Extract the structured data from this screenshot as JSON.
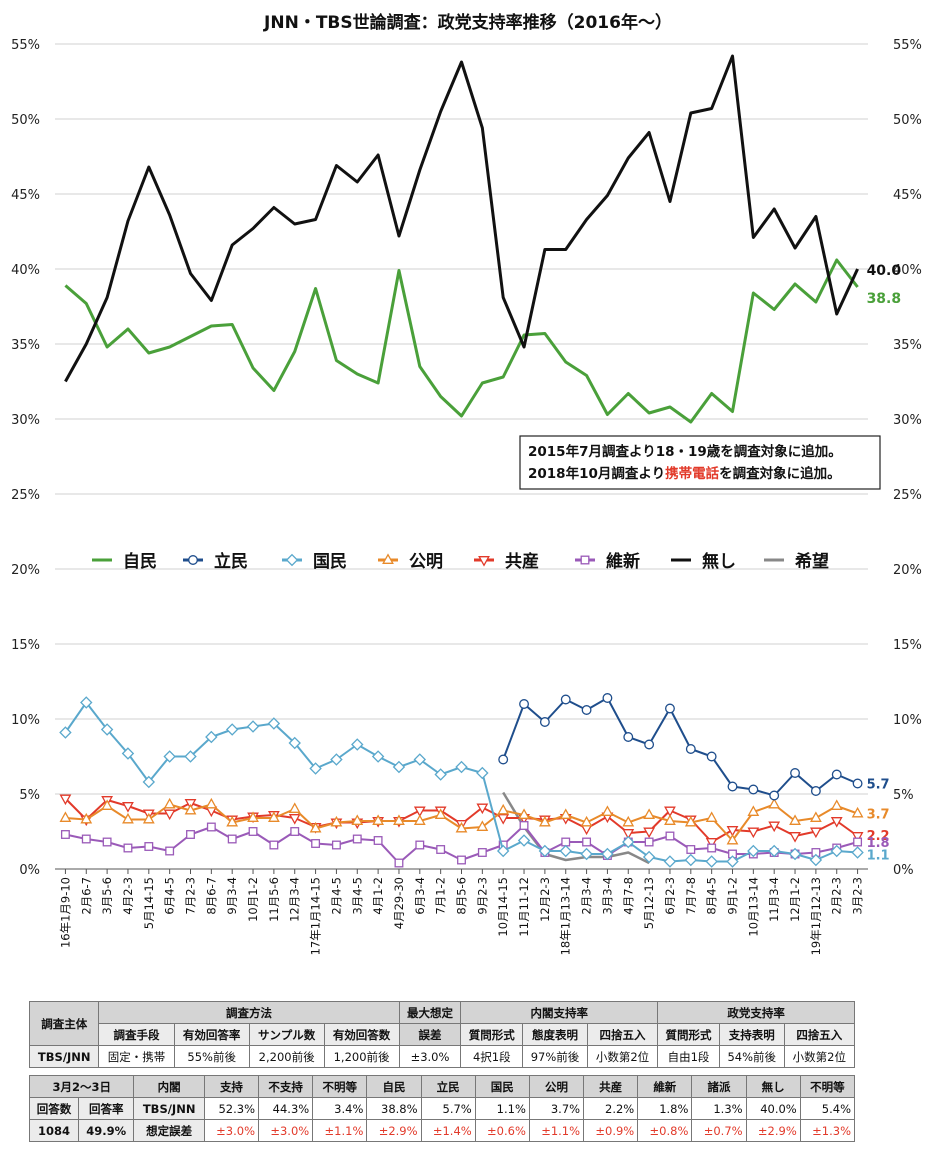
{
  "chart_data": {
    "type": "line",
    "title": "JNN・TBS世論調査：政党支持率推移（2016年〜）",
    "y_ticks": [
      "0%",
      "5%",
      "10%",
      "15%",
      "20%",
      "25%",
      "30%",
      "35%",
      "40%",
      "45%",
      "50%",
      "55%"
    ],
    "ylim": [
      0,
      55
    ],
    "grid": true,
    "legend_position": "middle",
    "categories": [
      "16年1月9-10",
      "2月6-7",
      "3月5-6",
      "4月2-3",
      "5月14-15",
      "6月4-5",
      "7月2-3",
      "8月6-7",
      "9月3-4",
      "10月1-2",
      "11月5-6",
      "12月3-4",
      "17年1月14-15",
      "2月4-5",
      "3月4-5",
      "4月1-2",
      "4月29-30",
      "6月3-4",
      "7月1-2",
      "8月5-6",
      "9月2-3",
      "10月14-15",
      "11月11-12",
      "12月2-3",
      "18年1月13-14",
      "2月3-4",
      "3月3-4",
      "4月7-8",
      "5月12-13",
      "6月2-3",
      "7月7-8",
      "8月4-5",
      "9月1-2",
      "10月13-14",
      "11月3-4",
      "12月1-2",
      "19年1月12-13",
      "2月2-3",
      "3月2-3"
    ],
    "series": [
      {
        "name": "自民",
        "color": "#4aa03a",
        "marker": "none",
        "label": "38.8",
        "values": [
          38.9,
          37.7,
          34.8,
          36.0,
          34.4,
          34.8,
          35.5,
          36.2,
          36.3,
          33.4,
          31.9,
          34.5,
          38.7,
          33.9,
          33.0,
          32.4,
          39.9,
          33.5,
          31.5,
          30.2,
          32.4,
          32.8,
          35.6,
          35.7,
          33.8,
          32.9,
          30.3,
          31.7,
          30.4,
          30.8,
          29.8,
          31.7,
          30.5,
          38.4,
          37.3,
          39.0,
          37.8,
          40.6,
          38.8
        ]
      },
      {
        "name": "立民",
        "color": "#1f4e8c",
        "marker": "circle",
        "label": "5.7",
        "values": [
          null,
          null,
          null,
          null,
          null,
          null,
          null,
          null,
          null,
          null,
          null,
          null,
          null,
          null,
          null,
          null,
          null,
          null,
          null,
          null,
          null,
          7.3,
          11.0,
          9.8,
          11.3,
          10.6,
          11.4,
          8.8,
          8.3,
          10.7,
          8.0,
          7.5,
          5.5,
          5.3,
          4.9,
          6.4,
          5.2,
          6.3,
          5.7
        ]
      },
      {
        "name": "国民",
        "color": "#5aa8cc",
        "marker": "diamond",
        "label": "1.1",
        "values": [
          9.1,
          11.1,
          9.3,
          7.7,
          5.8,
          7.5,
          7.5,
          8.8,
          9.3,
          9.5,
          9.7,
          8.4,
          6.7,
          7.3,
          8.3,
          7.5,
          6.8,
          7.3,
          6.3,
          6.8,
          6.4,
          1.2,
          1.9,
          1.2,
          1.2,
          1.0,
          1.0,
          1.8,
          0.8,
          0.5,
          0.6,
          0.5,
          0.5,
          1.2,
          1.2,
          1.0,
          0.6,
          1.2,
          1.1
        ]
      },
      {
        "name": "公明",
        "color": "#e88a2a",
        "marker": "triangle-up",
        "label": "3.7",
        "values": [
          3.4,
          3.3,
          4.2,
          3.3,
          3.3,
          4.3,
          3.9,
          4.3,
          3.1,
          3.4,
          3.4,
          4.0,
          2.7,
          3.1,
          3.2,
          3.2,
          3.2,
          3.2,
          3.6,
          2.7,
          2.8,
          3.9,
          3.6,
          3.1,
          3.6,
          3.1,
          3.8,
          3.1,
          3.6,
          3.2,
          3.1,
          3.4,
          1.9,
          3.8,
          4.3,
          3.2,
          3.4,
          4.2,
          3.7
        ]
      },
      {
        "name": "共産",
        "color": "#e23a2a",
        "marker": "triangle-down",
        "label": "2.2",
        "values": [
          4.7,
          3.3,
          4.6,
          4.2,
          3.7,
          3.7,
          4.4,
          3.9,
          3.3,
          3.5,
          3.6,
          3.4,
          2.8,
          3.1,
          3.1,
          3.2,
          3.2,
          3.9,
          3.9,
          3.0,
          4.1,
          3.4,
          3.4,
          3.3,
          3.4,
          2.7,
          3.5,
          2.4,
          2.5,
          3.9,
          3.3,
          1.8,
          2.6,
          2.5,
          2.9,
          2.2,
          2.5,
          3.2,
          2.2
        ]
      },
      {
        "name": "維新",
        "color": "#9a5ab8",
        "marker": "square",
        "label": "1.8",
        "values": [
          2.3,
          2.0,
          1.8,
          1.4,
          1.5,
          1.2,
          2.3,
          2.8,
          2.0,
          2.5,
          1.6,
          2.5,
          1.7,
          1.6,
          2.0,
          1.9,
          0.4,
          1.6,
          1.3,
          0.6,
          1.1,
          1.6,
          2.9,
          1.1,
          1.8,
          1.8,
          0.9,
          1.8,
          1.8,
          2.2,
          1.3,
          1.4,
          1.0,
          1.0,
          1.1,
          1.0,
          1.1,
          1.4,
          1.8
        ]
      },
      {
        "name": "無し",
        "color": "#111111",
        "marker": "none",
        "label": "40.0",
        "values": [
          32.5,
          35.0,
          38.1,
          43.2,
          46.8,
          43.6,
          39.7,
          37.9,
          41.6,
          42.7,
          44.1,
          43.0,
          43.3,
          46.9,
          45.8,
          47.6,
          42.2,
          46.6,
          50.5,
          53.8,
          49.4,
          38.1,
          34.8,
          41.3,
          41.3,
          43.3,
          44.9,
          47.4,
          49.1,
          44.5,
          50.4,
          50.7,
          54.2,
          42.1,
          44.0,
          41.4,
          43.5,
          37.0,
          40.0
        ]
      },
      {
        "name": "希望",
        "color": "#888888",
        "marker": "none",
        "label": "",
        "values": [
          null,
          null,
          null,
          null,
          null,
          null,
          null,
          null,
          null,
          null,
          null,
          null,
          null,
          null,
          null,
          null,
          null,
          null,
          null,
          null,
          null,
          5.1,
          2.8,
          1.0,
          0.6,
          0.8,
          0.8,
          1.1,
          0.4,
          null,
          null,
          null,
          null,
          null,
          null,
          null,
          null,
          null,
          null
        ]
      }
    ],
    "notes": [
      [
        {
          "text": "2015年7月調査より18・19歳を調査対象に追加。",
          "red": false
        }
      ],
      [
        {
          "text": "2018年10月調査より",
          "red": false
        },
        {
          "text": "携帯電話",
          "red": true
        },
        {
          "text": "を調査対象に追加。",
          "red": false
        }
      ]
    ]
  },
  "table1": {
    "survey_owner_header": "調査主体",
    "method_header": "調査方法",
    "margin_header_1": "最大想定",
    "margin_header_2": "誤差",
    "cabinet_header": "内閣支持率",
    "party_header": "政党支持率",
    "sub": [
      "調査手段",
      "有効回答率",
      "サンプル数",
      "有効回答数",
      "質問形式",
      "態度表明",
      "四捨五入",
      "質問形式",
      "支持表明",
      "四捨五入"
    ],
    "row": [
      "TBS/JNN",
      "固定・携帯",
      "55%前後",
      "2,200前後",
      "1,200前後",
      "±3.0%",
      "4択1段",
      "97%前後",
      "小数第2位",
      "自由1段",
      "54%前後",
      "小数第2位"
    ]
  },
  "table2": {
    "date": "3月2〜3日",
    "headers": [
      "内閣",
      "支持",
      "不支持",
      "不明等",
      "自民",
      "立民",
      "国民",
      "公明",
      "共産",
      "維新",
      "諸派",
      "無し",
      "不明等"
    ],
    "count_label": "回答数",
    "rate_label": "回答率",
    "count": "1084",
    "rate": "49.9%",
    "org": "TBS/JNN",
    "values": [
      "52.3%",
      "44.3%",
      "3.4%",
      "38.8%",
      "5.7%",
      "1.1%",
      "3.7%",
      "2.2%",
      "1.8%",
      "1.3%",
      "40.0%",
      "5.4%"
    ],
    "err_label": "想定誤差",
    "errors": [
      "±3.0%",
      "±3.0%",
      "±1.1%",
      "±2.9%",
      "±1.4%",
      "±0.6%",
      "±1.1%",
      "±0.9%",
      "±0.8%",
      "±0.7%",
      "±2.9%",
      "±1.3%"
    ]
  }
}
